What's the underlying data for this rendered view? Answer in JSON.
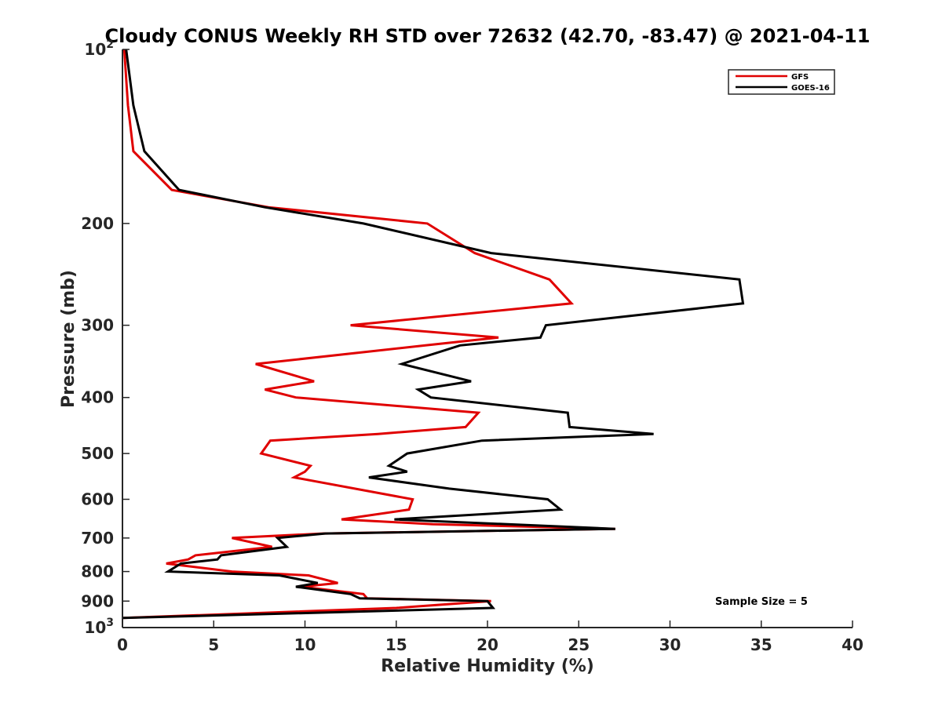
{
  "chart_data": {
    "type": "line",
    "title": "Cloudy CONUS Weekly RH STD over 72632 (42.70, -83.47) @ 2021-04-11",
    "xlabel": "Relative Humidity (%)",
    "ylabel": "Pressure (mb)",
    "xlim": [
      0,
      40
    ],
    "ylim": [
      100,
      1000
    ],
    "y_scale": "log",
    "y_reversed": true,
    "x_ticks": [
      "0",
      "5",
      "10",
      "15",
      "20",
      "25",
      "30",
      "35",
      "40"
    ],
    "y_ticks": [
      {
        "value": 100,
        "base": "10",
        "exp": "2"
      },
      {
        "value": 200,
        "label": "200"
      },
      {
        "value": 300,
        "label": "300"
      },
      {
        "value": 400,
        "label": "400"
      },
      {
        "value": 500,
        "label": "500"
      },
      {
        "value": 600,
        "label": "600"
      },
      {
        "value": 700,
        "label": "700"
      },
      {
        "value": 800,
        "label": "800"
      },
      {
        "value": 900,
        "label": "900"
      },
      {
        "value": 1000,
        "base": "10",
        "exp": "3"
      }
    ],
    "grid": false,
    "legend_position": "top-right",
    "annotation": "Sample Size = 5",
    "series": [
      {
        "name": "GFS",
        "color": "#e00000",
        "points": [
          [
            0.1,
            100
          ],
          [
            0.3,
            125
          ],
          [
            0.6,
            150
          ],
          [
            2.7,
            175
          ],
          [
            8.0,
            187.5
          ],
          [
            16.7,
            200
          ],
          [
            19.3,
            225
          ],
          [
            23.4,
            250
          ],
          [
            24.6,
            275
          ],
          [
            12.5,
            300
          ],
          [
            20.6,
            315
          ],
          [
            16.6,
            325
          ],
          [
            7.3,
            350
          ],
          [
            10.5,
            375
          ],
          [
            7.8,
            387.5
          ],
          [
            9.5,
            400
          ],
          [
            19.5,
            425
          ],
          [
            18.8,
            450
          ],
          [
            14.0,
            462.5
          ],
          [
            8.1,
            475
          ],
          [
            7.6,
            500
          ],
          [
            10.3,
            525
          ],
          [
            10.0,
            537.5
          ],
          [
            9.4,
            550
          ],
          [
            15.9,
            600
          ],
          [
            15.7,
            625
          ],
          [
            12.0,
            650
          ],
          [
            17.0,
            662.5
          ],
          [
            27.0,
            675
          ],
          [
            11.0,
            687.5
          ],
          [
            6.0,
            700
          ],
          [
            8.2,
            725
          ],
          [
            4.0,
            750
          ],
          [
            3.6,
            762.5
          ],
          [
            2.4,
            775
          ],
          [
            6.0,
            800
          ],
          [
            10.2,
            812.5
          ],
          [
            11.8,
            837.5
          ],
          [
            9.8,
            850
          ],
          [
            13.2,
            875
          ],
          [
            13.4,
            890
          ],
          [
            20.2,
            900
          ],
          [
            15.0,
            925
          ],
          [
            0.0,
            962.5
          ]
        ]
      },
      {
        "name": "GOES-16",
        "color": "#000000",
        "points": [
          [
            0.2,
            100
          ],
          [
            0.6,
            125
          ],
          [
            1.2,
            150
          ],
          [
            3.1,
            175
          ],
          [
            7.8,
            187.5
          ],
          [
            13.2,
            200
          ],
          [
            20.2,
            225
          ],
          [
            33.8,
            250
          ],
          [
            34.0,
            275
          ],
          [
            23.2,
            300
          ],
          [
            22.9,
            315
          ],
          [
            18.5,
            325
          ],
          [
            15.3,
            350
          ],
          [
            19.1,
            375
          ],
          [
            16.2,
            387.5
          ],
          [
            16.9,
            400
          ],
          [
            24.4,
            425
          ],
          [
            24.5,
            450
          ],
          [
            29.1,
            462.5
          ],
          [
            19.7,
            475
          ],
          [
            15.6,
            500
          ],
          [
            14.6,
            525
          ],
          [
            15.6,
            537.5
          ],
          [
            13.5,
            550
          ],
          [
            17.9,
            575
          ],
          [
            23.3,
            600
          ],
          [
            24.0,
            625
          ],
          [
            14.9,
            650
          ],
          [
            27.0,
            675
          ],
          [
            11.1,
            687.5
          ],
          [
            8.5,
            700
          ],
          [
            9.0,
            725
          ],
          [
            5.4,
            750
          ],
          [
            5.2,
            762.5
          ],
          [
            3.2,
            775
          ],
          [
            2.5,
            800
          ],
          [
            8.6,
            812.5
          ],
          [
            10.7,
            837.5
          ],
          [
            9.5,
            850
          ],
          [
            12.5,
            875
          ],
          [
            13.0,
            890
          ],
          [
            20.0,
            900
          ],
          [
            20.3,
            925
          ],
          [
            0.0,
            962.5
          ]
        ]
      }
    ]
  }
}
